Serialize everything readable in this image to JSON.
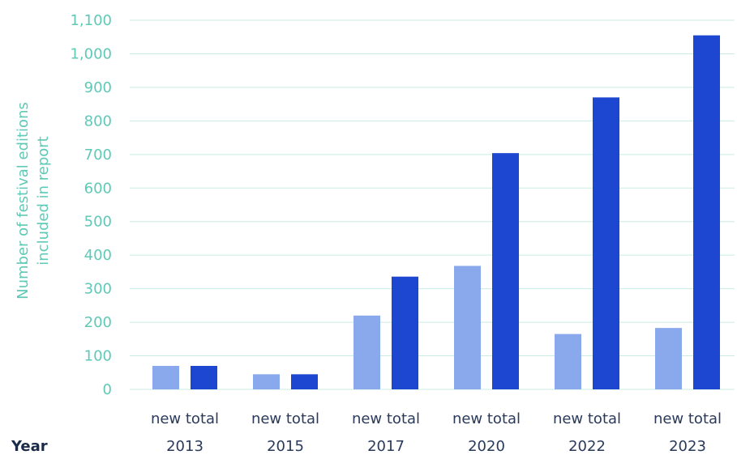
{
  "chart_data": {
    "type": "bar",
    "ylabel": "Number of festival editions included in report",
    "ylabel_lines": [
      "Number of festival editions",
      "included in report"
    ],
    "xlabel": "Year",
    "ylim": [
      0,
      1100
    ],
    "yticks": [
      0,
      100,
      200,
      300,
      400,
      500,
      600,
      700,
      800,
      900,
      1000,
      1100
    ],
    "ytick_labels": [
      "0",
      "100",
      "200",
      "300",
      "400",
      "500",
      "600",
      "700",
      "800",
      "900",
      "1,000",
      "1,100"
    ],
    "categories": [
      "2013",
      "2015",
      "2017",
      "2020",
      "2022",
      "2023"
    ],
    "bar_labels": [
      "new",
      "total"
    ],
    "series": [
      {
        "key": "new",
        "values": [
          70,
          45,
          220,
          368,
          165,
          183
        ],
        "color": "#8aa8ec"
      },
      {
        "key": "total",
        "values": [
          70,
          45,
          336,
          704,
          870,
          1055
        ],
        "color": "#1d47d1"
      }
    ],
    "grid": true
  }
}
